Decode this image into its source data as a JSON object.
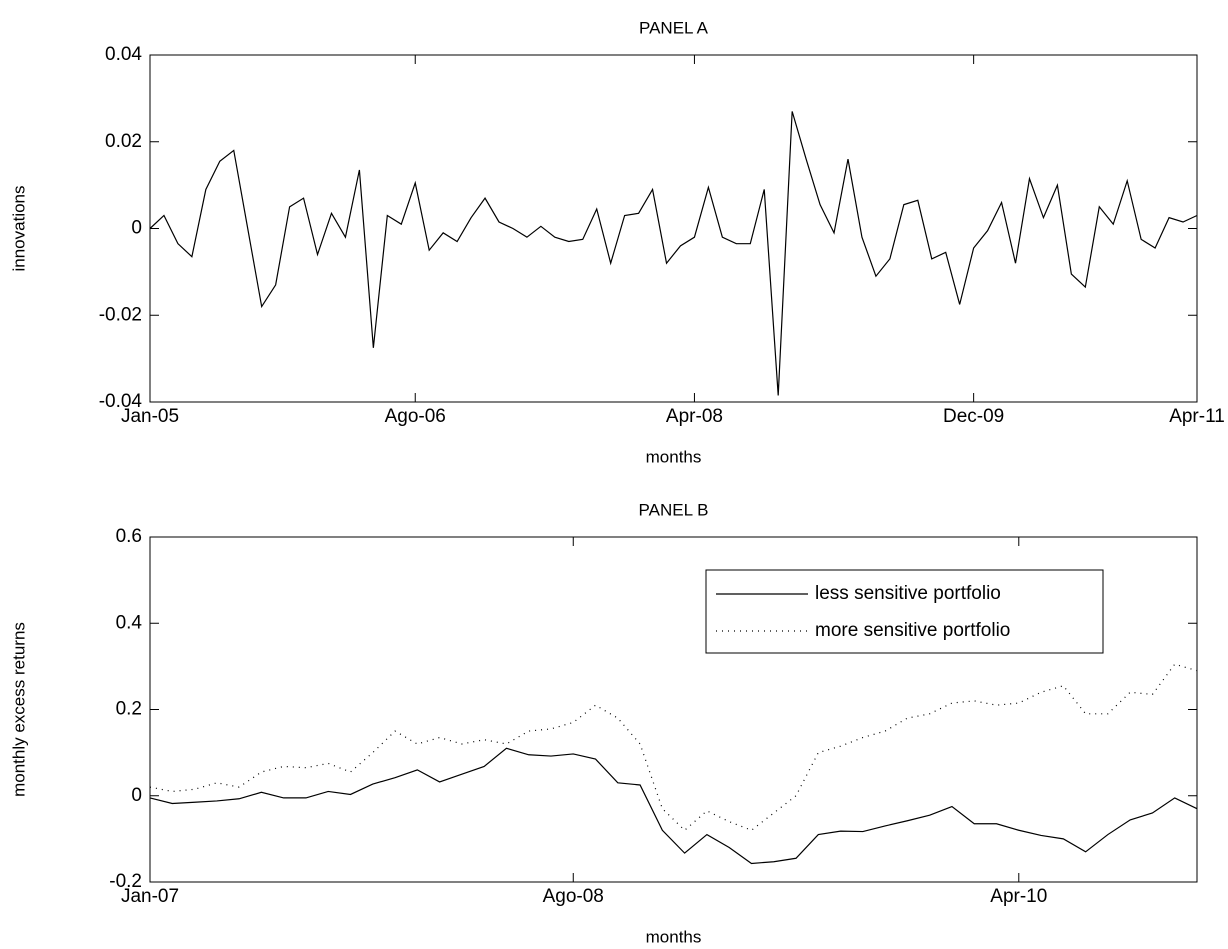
{
  "chart_data": [
    {
      "type": "line",
      "title": "PANEL A",
      "xlabel": "months",
      "ylabel": "innovations",
      "color": "#000000",
      "x": [
        "2005-01",
        "2005-02",
        "2005-03",
        "2005-04",
        "2005-05",
        "2005-06",
        "2005-07",
        "2005-08",
        "2005-09",
        "2005-10",
        "2005-11",
        "2005-12",
        "2006-01",
        "2006-02",
        "2006-03",
        "2006-04",
        "2006-05",
        "2006-06",
        "2006-07",
        "2006-08",
        "2006-09",
        "2006-10",
        "2006-11",
        "2006-12",
        "2007-01",
        "2007-02",
        "2007-03",
        "2007-04",
        "2007-05",
        "2007-06",
        "2007-07",
        "2007-08",
        "2007-09",
        "2007-10",
        "2007-11",
        "2007-12",
        "2008-01",
        "2008-02",
        "2008-03",
        "2008-04",
        "2008-05",
        "2008-06",
        "2008-07",
        "2008-08",
        "2008-09",
        "2008-10",
        "2008-11",
        "2008-12",
        "2009-01",
        "2009-02",
        "2009-03",
        "2009-04",
        "2009-05",
        "2009-06",
        "2009-07",
        "2009-08",
        "2009-09",
        "2009-10",
        "2009-11",
        "2009-12",
        "2010-01",
        "2010-02",
        "2010-03",
        "2010-04",
        "2010-05",
        "2010-06",
        "2010-07",
        "2010-08",
        "2010-09",
        "2010-10",
        "2010-11",
        "2010-12",
        "2011-01",
        "2011-02",
        "2011-03",
        "2011-04"
      ],
      "values": [
        0,
        0.003,
        -0.0035,
        -0.0065,
        0.009,
        0.0155,
        0.018,
        0.0,
        -0.018,
        -0.013,
        0.005,
        0.007,
        -0.006,
        0.0035,
        -0.002,
        0.0135,
        -0.0275,
        0.003,
        0.001,
        0.0105,
        -0.005,
        -0.001,
        -0.003,
        0.0025,
        0.007,
        0.0015,
        0.0,
        -0.002,
        0.0005,
        -0.002,
        -0.003,
        -0.0025,
        0.0045,
        -0.008,
        0.003,
        0.0035,
        0.009,
        -0.008,
        -0.004,
        -0.002,
        0.0095,
        -0.002,
        -0.0035,
        -0.0035,
        0.009,
        -0.0385,
        0.027,
        0.016,
        0.0055,
        -0.001,
        0.016,
        -0.002,
        -0.011,
        -0.007,
        0.0055,
        0.0065,
        -0.007,
        -0.0055,
        -0.0175,
        -0.0045,
        -0.0005,
        0.006,
        -0.008,
        0.0115,
        0.0025,
        0.01,
        -0.0105,
        -0.0135,
        0.005,
        0.001,
        0.011,
        -0.0025,
        -0.0045,
        0.0025,
        0.0015,
        0.003
      ],
      "xlim": [
        "2005-01",
        "2011-04"
      ],
      "xticks": [
        {
          "value": "2005-01",
          "label": "Jan-05"
        },
        {
          "value": "2006-08",
          "label": "Ago-06"
        },
        {
          "value": "2008-04",
          "label": "Apr-08"
        },
        {
          "value": "2009-12",
          "label": "Dec-09"
        },
        {
          "value": "2011-04",
          "label": "Apr-11"
        }
      ],
      "ylim": [
        -0.04,
        0.04
      ],
      "yticks": [
        -0.04,
        -0.02,
        0,
        0.02,
        0.04
      ]
    },
    {
      "type": "line",
      "title": "PANEL B",
      "xlabel": "months",
      "ylabel": "monthly excess returns",
      "legend": "upper right",
      "x": [
        "2007-01",
        "2007-02",
        "2007-03",
        "2007-04",
        "2007-05",
        "2007-06",
        "2007-07",
        "2007-08",
        "2007-09",
        "2007-10",
        "2007-11",
        "2007-12",
        "2008-01",
        "2008-02",
        "2008-03",
        "2008-04",
        "2008-05",
        "2008-06",
        "2008-07",
        "2008-08",
        "2008-09",
        "2008-10",
        "2008-11",
        "2008-12",
        "2009-01",
        "2009-02",
        "2009-03",
        "2009-04",
        "2009-05",
        "2009-06",
        "2009-07",
        "2009-08",
        "2009-09",
        "2009-10",
        "2009-11",
        "2009-12",
        "2010-01",
        "2010-02",
        "2010-03",
        "2010-04",
        "2010-05",
        "2010-06",
        "2010-07",
        "2010-08",
        "2010-09",
        "2010-10",
        "2010-11",
        "2010-12"
      ],
      "series": [
        {
          "name": "less sensitive portfolio",
          "color": "#000000",
          "linestyle": "solid",
          "values": [
            -0.005,
            -0.018,
            -0.015,
            -0.012,
            -0.007,
            0.008,
            -0.005,
            -0.005,
            0.01,
            0.003,
            0.027,
            0.042,
            0.06,
            0.032,
            0.05,
            0.068,
            0.11,
            0.095,
            0.092,
            0.097,
            0.085,
            0.03,
            0.025,
            -0.08,
            -0.133,
            -0.09,
            -0.12,
            -0.157,
            -0.153,
            -0.145,
            -0.09,
            -0.082,
            -0.083,
            -0.07,
            -0.058,
            -0.045,
            -0.025,
            -0.065,
            -0.065,
            -0.08,
            -0.092,
            -0.1,
            -0.13,
            -0.09,
            -0.056,
            -0.04,
            -0.005,
            -0.03
          ]
        },
        {
          "name": "more sensitive portfolio",
          "color": "#000000",
          "linestyle": "dotted",
          "values": [
            0.02,
            0.01,
            0.015,
            0.03,
            0.02,
            0.055,
            0.068,
            0.065,
            0.075,
            0.055,
            0.1,
            0.15,
            0.12,
            0.135,
            0.12,
            0.13,
            0.12,
            0.15,
            0.155,
            0.17,
            0.21,
            0.18,
            0.12,
            -0.03,
            -0.08,
            -0.035,
            -0.06,
            -0.08,
            -0.04,
            0.0,
            0.1,
            0.115,
            0.135,
            0.15,
            0.18,
            0.19,
            0.215,
            0.22,
            0.21,
            0.215,
            0.24,
            0.255,
            0.19,
            0.19,
            0.24,
            0.235,
            0.305,
            0.29
          ]
        }
      ],
      "xlim": [
        "2007-01",
        "2010-12"
      ],
      "xticks": [
        {
          "value": "2007-01",
          "label": "Jan-07"
        },
        {
          "value": "2008-08",
          "label": "Ago-08"
        },
        {
          "value": "2010-04",
          "label": "Apr-10"
        }
      ],
      "ylim": [
        -0.2,
        0.6
      ],
      "yticks": [
        -0.2,
        0,
        0.2,
        0.4,
        0.6
      ]
    }
  ]
}
